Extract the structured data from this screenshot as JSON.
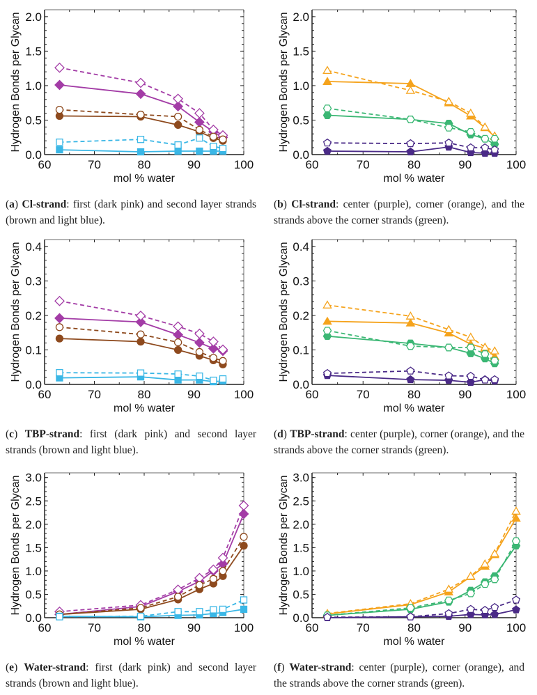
{
  "colors": {
    "pink": "#a33ca6",
    "brown": "#8e4a1e",
    "blue": "#3ab7e6",
    "orange": "#f5a31c",
    "green": "#3bb774",
    "purple": "#4a2a87",
    "axis": "#222222"
  },
  "chart_data": [
    {
      "id": "a",
      "type": "line",
      "xlabel": "mol % water",
      "ylabel": "Hydrogen Bonds per Glycan",
      "xlim": [
        60,
        100
      ],
      "ylim": [
        0,
        2.1
      ],
      "xticks": [
        "60",
        "70",
        "80",
        "90",
        "100"
      ],
      "yticks": [
        "0.0",
        "0.5",
        "1.0",
        "1.5",
        "2.0"
      ],
      "caption": {
        "letter": "a",
        "title": "Cl-strand",
        "text": ": first (dark pink) and second layer strands (brown and light blue)."
      },
      "x": [
        63,
        79.3,
        86.8,
        91.1,
        93.9,
        95.8
      ],
      "series": [
        {
          "name": "first layer (solid)",
          "color": "pink",
          "marker": "diamond",
          "filled": true,
          "dashed": false,
          "values": [
            1.01,
            0.88,
            0.7,
            0.47,
            0.33,
            0.25
          ]
        },
        {
          "name": "first layer (dashed)",
          "color": "pink",
          "marker": "diamond",
          "filled": false,
          "dashed": true,
          "values": [
            1.26,
            1.04,
            0.81,
            0.6,
            0.36,
            0.28
          ]
        },
        {
          "name": "second layer brown (solid)",
          "color": "brown",
          "marker": "circle",
          "filled": true,
          "dashed": false,
          "values": [
            0.56,
            0.55,
            0.43,
            0.33,
            0.24,
            0.2
          ]
        },
        {
          "name": "second layer brown (dashed)",
          "color": "brown",
          "marker": "circle",
          "filled": false,
          "dashed": true,
          "values": [
            0.65,
            0.58,
            0.55,
            0.36,
            0.26,
            0.22
          ]
        },
        {
          "name": "second layer light blue (solid)",
          "color": "blue",
          "marker": "square",
          "filled": true,
          "dashed": false,
          "values": [
            0.07,
            0.04,
            0.05,
            0.05,
            0.05,
            0.05
          ]
        },
        {
          "name": "second layer light blue (dashed)",
          "color": "blue",
          "marker": "square",
          "filled": false,
          "dashed": true,
          "values": [
            0.18,
            0.22,
            0.14,
            0.24,
            0.12,
            0.09
          ]
        }
      ]
    },
    {
      "id": "b",
      "type": "line",
      "xlabel": "mol % water",
      "ylabel": "Hydrogen Bonds per Glycan",
      "xlim": [
        60,
        100
      ],
      "ylim": [
        0,
        2.1
      ],
      "xticks": [
        "60",
        "70",
        "80",
        "90",
        "100"
      ],
      "yticks": [
        "0.0",
        "0.5",
        "1.0",
        "1.5",
        "2.0"
      ],
      "caption": {
        "letter": "b",
        "title": "Cl-strand",
        "text": ":  center (purple), corner (orange), and the strands above the corner strands (green)."
      },
      "x": [
        63,
        79.3,
        86.8,
        91.1,
        93.9,
        95.8
      ],
      "series": [
        {
          "name": "corner (solid)",
          "color": "orange",
          "marker": "triangle",
          "filled": true,
          "dashed": false,
          "values": [
            1.06,
            1.03,
            0.75,
            0.56,
            0.39,
            0.26
          ]
        },
        {
          "name": "corner (dashed)",
          "color": "orange",
          "marker": "triangle",
          "filled": false,
          "dashed": true,
          "values": [
            1.22,
            0.93,
            0.77,
            0.6,
            0.4,
            0.27
          ]
        },
        {
          "name": "above corner (solid)",
          "color": "green",
          "marker": "hexagon",
          "filled": true,
          "dashed": false,
          "values": [
            0.57,
            0.51,
            0.45,
            0.29,
            0.23,
            0.15
          ]
        },
        {
          "name": "above corner (dashed)",
          "color": "green",
          "marker": "hexagon",
          "filled": false,
          "dashed": true,
          "values": [
            0.67,
            0.51,
            0.39,
            0.33,
            0.23,
            0.23
          ]
        },
        {
          "name": "center (solid)",
          "color": "purple",
          "marker": "pentagon",
          "filled": true,
          "dashed": false,
          "values": [
            0.05,
            0.04,
            0.11,
            0.03,
            0.02,
            0.02
          ]
        },
        {
          "name": "center (dashed)",
          "color": "purple",
          "marker": "pentagon",
          "filled": false,
          "dashed": true,
          "values": [
            0.17,
            0.16,
            0.17,
            0.1,
            0.1,
            0.07
          ]
        }
      ]
    },
    {
      "id": "c",
      "type": "line",
      "xlabel": "mol % water",
      "ylabel": "Hydrogen Bonds per Glycan",
      "xlim": [
        60,
        100
      ],
      "ylim": [
        0,
        0.42
      ],
      "xticks": [
        "60",
        "70",
        "80",
        "90",
        "100"
      ],
      "yticks": [
        "0.0",
        "0.1",
        "0.2",
        "0.3",
        "0.4"
      ],
      "caption": {
        "letter": "c",
        "title": "TBP-strand",
        "text": ": first (dark pink) and second layer strands (brown and light blue)."
      },
      "x": [
        63,
        79.3,
        86.8,
        91.1,
        93.9,
        95.8
      ],
      "series": [
        {
          "name": "first layer (solid)",
          "color": "pink",
          "marker": "diamond",
          "filled": true,
          "dashed": false,
          "values": [
            0.192,
            0.181,
            0.144,
            0.121,
            0.104,
            0.097
          ]
        },
        {
          "name": "first layer (dashed)",
          "color": "pink",
          "marker": "diamond",
          "filled": false,
          "dashed": true,
          "values": [
            0.242,
            0.199,
            0.168,
            0.147,
            0.124,
            0.101
          ]
        },
        {
          "name": "second layer brown (solid)",
          "color": "brown",
          "marker": "circle",
          "filled": true,
          "dashed": false,
          "values": [
            0.133,
            0.124,
            0.1,
            0.083,
            0.07,
            0.058
          ]
        },
        {
          "name": "second layer brown (dashed)",
          "color": "brown",
          "marker": "circle",
          "filled": false,
          "dashed": true,
          "values": [
            0.166,
            0.145,
            0.122,
            0.094,
            0.077,
            0.068
          ]
        },
        {
          "name": "second layer light blue (solid)",
          "color": "blue",
          "marker": "square",
          "filled": true,
          "dashed": false,
          "values": [
            0.019,
            0.022,
            0.013,
            0.013,
            0.008,
            0.01
          ]
        },
        {
          "name": "second layer light blue (dashed)",
          "color": "blue",
          "marker": "square",
          "filled": false,
          "dashed": true,
          "values": [
            0.034,
            0.033,
            0.03,
            0.024,
            0.012,
            0.016
          ]
        }
      ]
    },
    {
      "id": "d",
      "type": "line",
      "xlabel": "mol % water",
      "ylabel": "Hydrogen Bonds per Glycan",
      "xlim": [
        60,
        100
      ],
      "ylim": [
        0,
        0.42
      ],
      "xticks": [
        "60",
        "70",
        "80",
        "90",
        "100"
      ],
      "yticks": [
        "0.0",
        "0.1",
        "0.2",
        "0.3",
        "0.4"
      ],
      "caption": {
        "letter": "d",
        "title": "TBP-strand",
        "text": ": center (purple), corner (orange), and the strands above the corner strands (green)."
      },
      "x": [
        63,
        79.3,
        86.8,
        91.1,
        93.9,
        95.8
      ],
      "series": [
        {
          "name": "corner (solid)",
          "color": "orange",
          "marker": "triangle",
          "filled": true,
          "dashed": false,
          "values": [
            0.183,
            0.178,
            0.149,
            0.117,
            0.105,
            0.081
          ]
        },
        {
          "name": "corner (dashed)",
          "color": "orange",
          "marker": "triangle",
          "filled": false,
          "dashed": true,
          "values": [
            0.23,
            0.198,
            0.159,
            0.137,
            0.108,
            0.097
          ]
        },
        {
          "name": "above corner (solid)",
          "color": "green",
          "marker": "hexagon",
          "filled": true,
          "dashed": false,
          "values": [
            0.14,
            0.119,
            0.107,
            0.09,
            0.075,
            0.061
          ]
        },
        {
          "name": "above corner (dashed)",
          "color": "green",
          "marker": "hexagon",
          "filled": false,
          "dashed": true,
          "values": [
            0.156,
            0.111,
            0.107,
            0.107,
            0.088,
            0.069
          ]
        },
        {
          "name": "center (solid)",
          "color": "purple",
          "marker": "pentagon",
          "filled": true,
          "dashed": false,
          "values": [
            0.026,
            0.014,
            0.012,
            0.006,
            0.014,
            0.01
          ]
        },
        {
          "name": "center (dashed)",
          "color": "purple",
          "marker": "pentagon",
          "filled": false,
          "dashed": true,
          "values": [
            0.032,
            0.039,
            0.025,
            0.024,
            0.013,
            0.014
          ]
        }
      ]
    },
    {
      "id": "e",
      "type": "line",
      "xlabel": "mol % water",
      "ylabel": "Hydrogen Bonds per Glycan",
      "xlim": [
        60,
        100
      ],
      "ylim": [
        0,
        3.1
      ],
      "xticks": [
        "60",
        "70",
        "80",
        "90",
        "100"
      ],
      "yticks": [
        "0.0",
        "0.5",
        "1.0",
        "1.5",
        "2.0",
        "2.5",
        "3.0"
      ],
      "caption": {
        "letter": "e",
        "title": "Water-strand",
        "text": ":  first (dark pink) and second layer strands (brown and light blue)."
      },
      "x": [
        63,
        79.3,
        86.8,
        91.1,
        93.9,
        95.8,
        100
      ],
      "series": [
        {
          "name": "first layer (solid)",
          "color": "pink",
          "marker": "diamond",
          "filled": true,
          "dashed": false,
          "values": [
            0.07,
            0.24,
            0.56,
            0.78,
            1.0,
            1.15,
            2.22
          ]
        },
        {
          "name": "first layer (dashed)",
          "color": "pink",
          "marker": "diamond",
          "filled": false,
          "dashed": true,
          "values": [
            0.13,
            0.27,
            0.6,
            0.85,
            1.03,
            1.28,
            2.4
          ]
        },
        {
          "name": "second layer brown (solid)",
          "color": "brown",
          "marker": "circle",
          "filled": true,
          "dashed": false,
          "values": [
            0.07,
            0.18,
            0.39,
            0.61,
            0.73,
            0.89,
            1.54
          ]
        },
        {
          "name": "second layer brown (dashed)",
          "color": "brown",
          "marker": "circle",
          "filled": false,
          "dashed": true,
          "values": [
            0.07,
            0.21,
            0.45,
            0.7,
            0.83,
            1.0,
            1.73
          ]
        },
        {
          "name": "second layer light blue (solid)",
          "color": "blue",
          "marker": "square",
          "filled": true,
          "dashed": false,
          "values": [
            0.03,
            0.02,
            0.05,
            0.06,
            0.09,
            0.11,
            0.18
          ]
        },
        {
          "name": "second layer light blue (dashed)",
          "color": "blue",
          "marker": "square",
          "filled": false,
          "dashed": true,
          "values": [
            0.02,
            0.03,
            0.13,
            0.13,
            0.17,
            0.18,
            0.38
          ]
        }
      ]
    },
    {
      "id": "f",
      "type": "line",
      "xlabel": "mol % water",
      "ylabel": "Hydrogen Bonds per Glycan",
      "xlim": [
        60,
        100
      ],
      "ylim": [
        0,
        3.1
      ],
      "xticks": [
        "60",
        "70",
        "80",
        "90",
        "100"
      ],
      "yticks": [
        "0.0",
        "0.5",
        "1.0",
        "1.5",
        "2.0",
        "2.5",
        "3.0"
      ],
      "caption": {
        "letter": "f",
        "title": "Water-strand",
        "text": ": center (purple), corner (orange), and the strands above the corner strands (green)."
      },
      "x": [
        63,
        79.3,
        86.8,
        91.1,
        93.9,
        95.8,
        100
      ],
      "series": [
        {
          "name": "corner (solid)",
          "color": "orange",
          "marker": "triangle",
          "filled": true,
          "dashed": false,
          "values": [
            0.08,
            0.28,
            0.55,
            0.88,
            1.1,
            1.35,
            2.13
          ]
        },
        {
          "name": "corner (dashed)",
          "color": "orange",
          "marker": "triangle",
          "filled": false,
          "dashed": true,
          "values": [
            0.09,
            0.3,
            0.61,
            0.89,
            1.15,
            1.37,
            2.28
          ]
        },
        {
          "name": "above corner (solid)",
          "color": "green",
          "marker": "hexagon",
          "filled": true,
          "dashed": false,
          "values": [
            0.05,
            0.18,
            0.34,
            0.58,
            0.76,
            0.89,
            1.54
          ]
        },
        {
          "name": "above corner (dashed)",
          "color": "green",
          "marker": "hexagon",
          "filled": false,
          "dashed": true,
          "values": [
            0.05,
            0.21,
            0.37,
            0.52,
            0.72,
            0.82,
            1.64
          ]
        },
        {
          "name": "center (solid)",
          "color": "purple",
          "marker": "pentagon",
          "filled": true,
          "dashed": false,
          "values": [
            0.0,
            0.02,
            0.03,
            0.07,
            0.06,
            0.07,
            0.17
          ]
        },
        {
          "name": "center (dashed)",
          "color": "purple",
          "marker": "pentagon",
          "filled": false,
          "dashed": true,
          "values": [
            0.01,
            0.02,
            0.09,
            0.18,
            0.16,
            0.22,
            0.38
          ]
        }
      ]
    }
  ]
}
